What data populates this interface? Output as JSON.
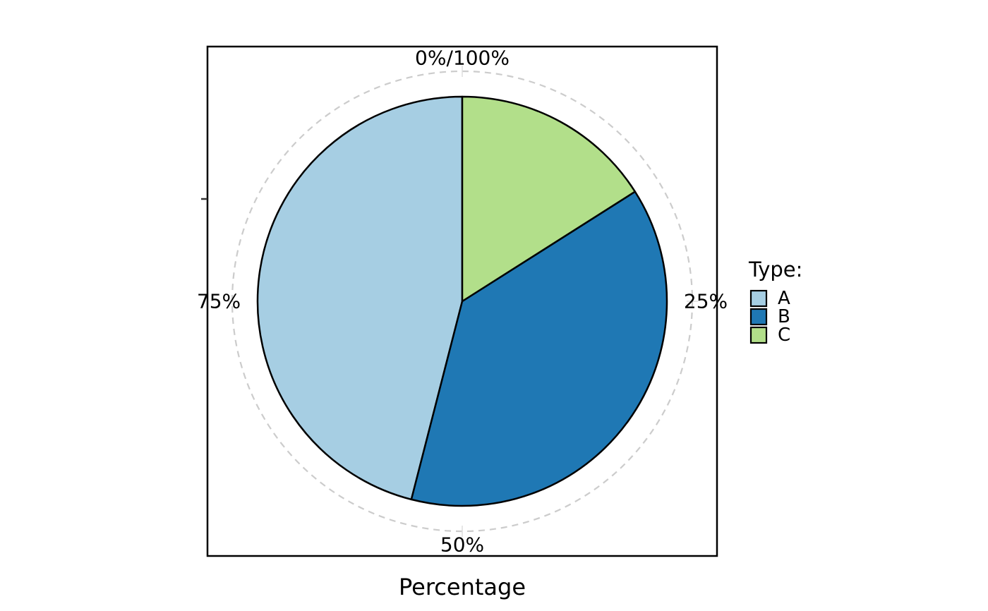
{
  "chart_data": {
    "type": "pie",
    "xlabel": "Percentage",
    "ylabel": "",
    "categories": [
      "A",
      "B",
      "C"
    ],
    "values": [
      46,
      38,
      16
    ],
    "colors": [
      "#a6cee3",
      "#1f78b4",
      "#b2df8a"
    ],
    "theta_ticks": [
      "0%/100%",
      "25%",
      "50%",
      "75%"
    ],
    "legend": {
      "title": "Type:",
      "placement": "right",
      "entries": [
        "A",
        "B",
        "C"
      ]
    },
    "grid": true
  }
}
